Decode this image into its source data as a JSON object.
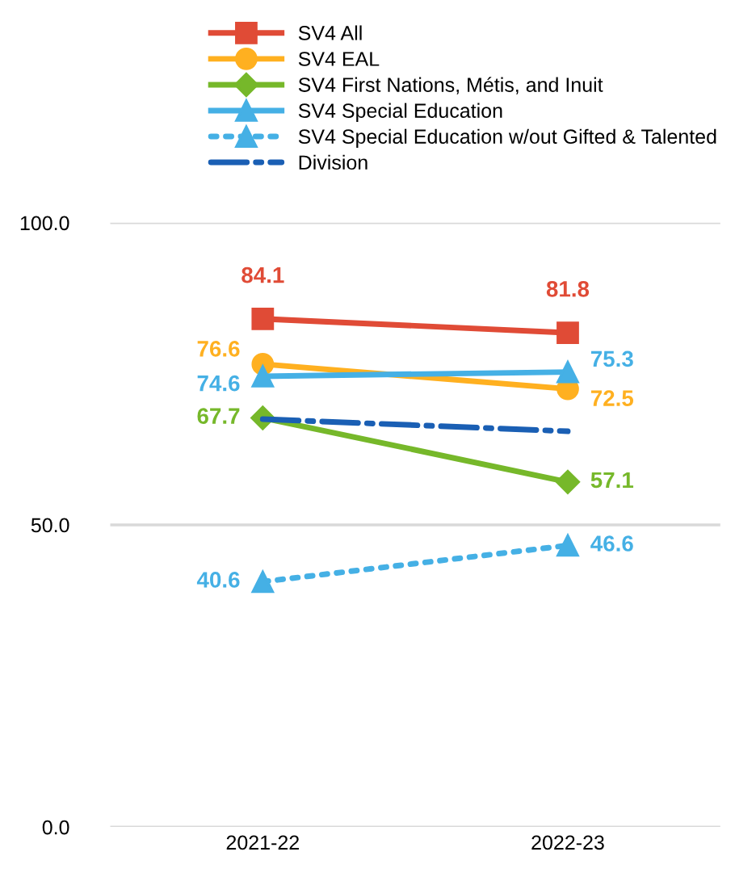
{
  "chart_data": {
    "type": "line",
    "categories": [
      "2021-22",
      "2022-23"
    ],
    "ylim": [
      0,
      100
    ],
    "yticks": [
      {
        "value": 0,
        "label": "0.0"
      },
      {
        "value": 50,
        "label": "50.0"
      },
      {
        "value": 100,
        "label": "100.0"
      }
    ],
    "grid": "y",
    "legend": "top",
    "series": [
      {
        "name": "SV4 All",
        "color": "#e04b36",
        "values": [
          84.1,
          81.8
        ],
        "marker": "square",
        "line_style": "solid",
        "value_labels": [
          "84.1",
          "81.8"
        ]
      },
      {
        "name": "SV4 EAL",
        "color": "#ffb020",
        "values": [
          76.6,
          72.5
        ],
        "marker": "circle",
        "line_style": "solid",
        "value_labels": [
          "76.6",
          "72.5"
        ]
      },
      {
        "name": "SV4 First Nations, Métis, and Inuit",
        "color": "#76b82a",
        "values": [
          67.7,
          57.1
        ],
        "marker": "diamond",
        "line_style": "solid",
        "value_labels": [
          "67.7",
          "57.1"
        ]
      },
      {
        "name": "SV4 Special Education",
        "color": "#45b0e5",
        "values": [
          74.6,
          75.3
        ],
        "marker": "triangle",
        "line_style": "solid",
        "value_labels": [
          "74.6",
          "75.3"
        ]
      },
      {
        "name": "SV4 Special Education w/out Gifted & Talented",
        "color": "#45b0e5",
        "values": [
          40.6,
          46.6
        ],
        "marker": "triangle",
        "line_style": "dotted",
        "value_labels": [
          "40.6",
          "46.6"
        ]
      },
      {
        "name": "Division",
        "color": "#1a5fb4",
        "values": [
          67.5,
          65.5
        ],
        "marker": "none",
        "line_style": "dashdot"
      }
    ]
  }
}
